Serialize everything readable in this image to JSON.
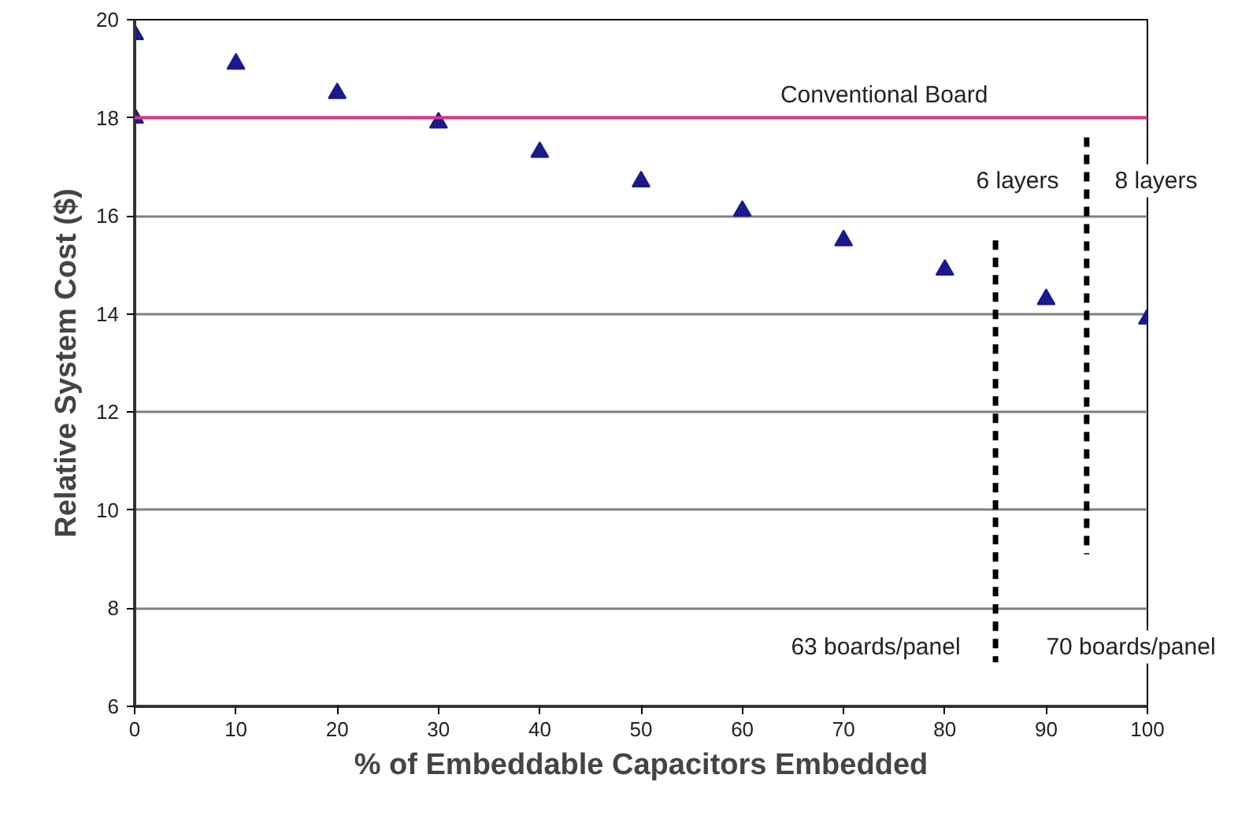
{
  "chart_data": {
    "type": "scatter",
    "xlabel": "% of Embeddable Capacitors Embedded",
    "ylabel": "Relative System Cost ($)",
    "xlim": [
      0,
      100
    ],
    "xticks": [
      0,
      10,
      20,
      30,
      40,
      50,
      60,
      70,
      80,
      90,
      100
    ],
    "ylim": [
      6,
      20
    ],
    "yticks": [
      6,
      8,
      10,
      12,
      14,
      16,
      18,
      20
    ],
    "grid": "y",
    "series": [
      {
        "type": "scatter",
        "marker": "triangle",
        "color": "#1a1a8c",
        "x": [
          0,
          0,
          10,
          20,
          30,
          40,
          50,
          60,
          70,
          80,
          90,
          100
        ],
        "values": [
          19.7,
          18.0,
          19.1,
          18.5,
          17.9,
          17.3,
          16.7,
          16.1,
          15.5,
          14.9,
          14.3,
          13.9
        ]
      },
      {
        "type": "line",
        "color": "#000000",
        "line_style": "dashed",
        "x": [
          85,
          85
        ],
        "values": [
          15.5,
          6.9
        ]
      },
      {
        "type": "line",
        "color": "#000000",
        "line_style": "dashed",
        "x": [
          94,
          94
        ],
        "values": [
          17.6,
          9.1
        ]
      }
    ],
    "ref_lines": [
      {
        "axis": "y",
        "value": 18,
        "label": "Conventional Board",
        "color": "#e0338a"
      }
    ],
    "annotations": [
      "6 layers",
      "8 layers",
      "63 boards/panel",
      "70 boards/panel"
    ]
  }
}
